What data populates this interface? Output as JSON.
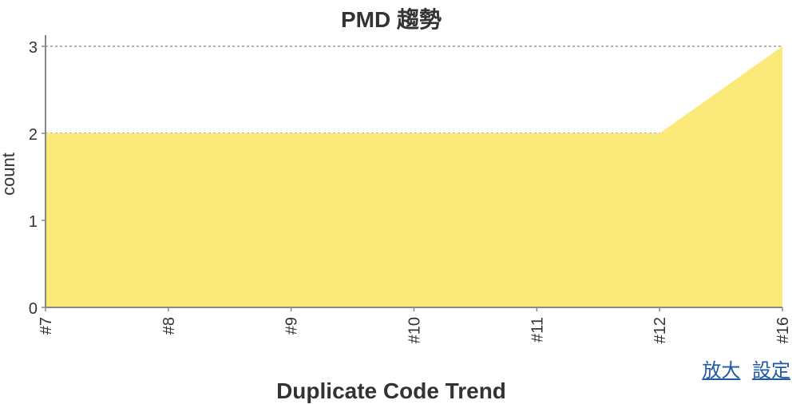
{
  "chart_data": {
    "type": "area",
    "title": "PMD 趨勢",
    "xlabel": "",
    "ylabel": "count",
    "categories": [
      "#7",
      "#8",
      "#9",
      "#10",
      "#11",
      "#12",
      "#16"
    ],
    "series": [
      {
        "values": [
          2,
          2,
          2,
          2,
          2,
          2,
          3
        ]
      }
    ],
    "ylim": [
      0,
      3
    ],
    "yticks": [
      0,
      1,
      2,
      3
    ],
    "grid": true,
    "colors": {
      "fill": "#fbe97a",
      "axis": "#888888",
      "grid": "#888888",
      "text": "#333333"
    }
  },
  "links": {
    "zoom_label": "放大",
    "settings_label": "設定"
  },
  "next_chart": {
    "title": "Duplicate Code Trend"
  }
}
